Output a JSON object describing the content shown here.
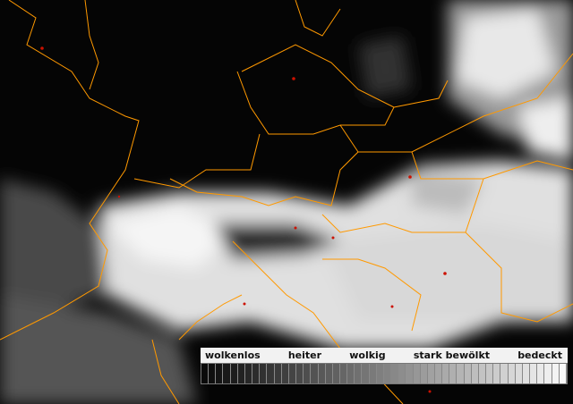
{
  "legend": {
    "labels": [
      "wolkenlos",
      "heiter",
      "wolkig",
      "stark bewölkt",
      "bedeckt"
    ],
    "steps": 50,
    "color_from": "#0a0a0a",
    "color_to": "#f8f8f8"
  },
  "colors": {
    "borders": "#ff9900",
    "cities": "#cc1100"
  }
}
